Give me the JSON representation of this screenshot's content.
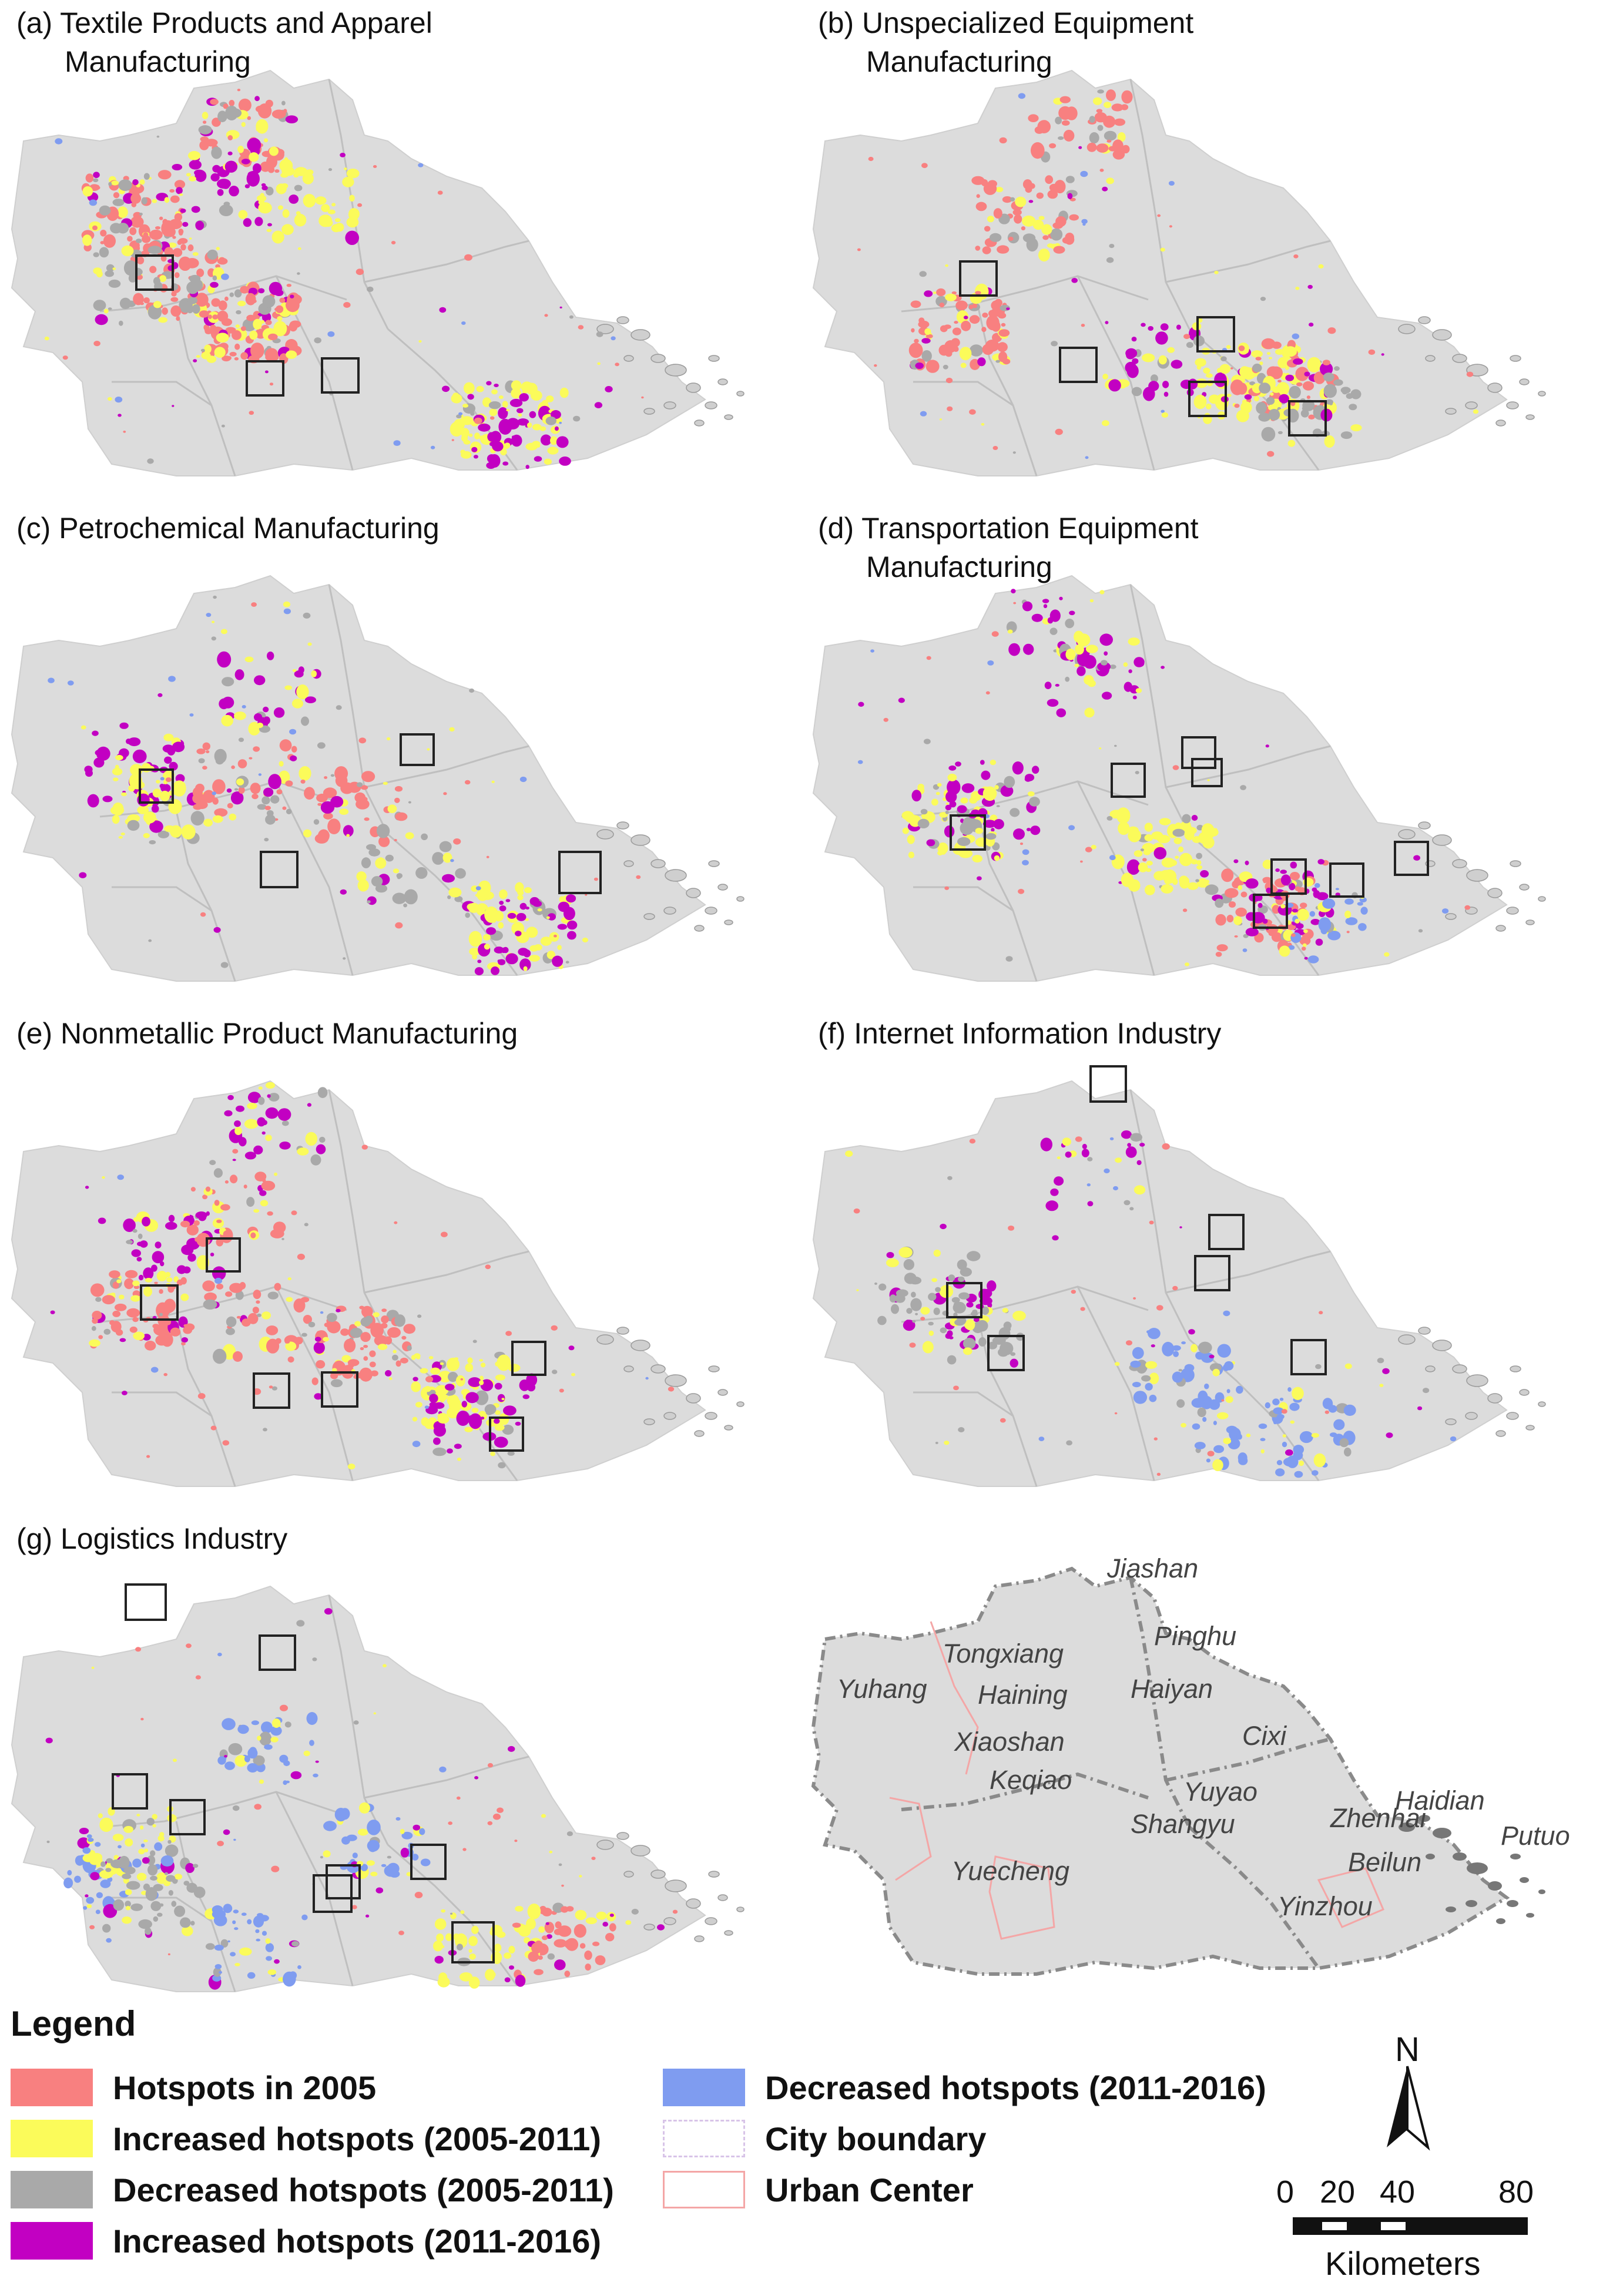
{
  "panels": [
    {
      "id": "a",
      "title_l1": "(a) Textile Products and Apparel",
      "title_l2": "Manufacturing"
    },
    {
      "id": "b",
      "title_l1": "(b) Unspecialized Equipment",
      "title_l2": "Manufacturing"
    },
    {
      "id": "c",
      "title_l1": "(c) Petrochemical Manufacturing",
      "title_l2": ""
    },
    {
      "id": "d",
      "title_l1": "(d) Transportation Equipment",
      "title_l2": "Manufacturing"
    },
    {
      "id": "e",
      "title_l1": "(e) Nonmetallic  Product  Manufacturing",
      "title_l2": ""
    },
    {
      "id": "f",
      "title_l1": "(f) Internet Information Industry",
      "title_l2": ""
    },
    {
      "id": "g",
      "title_l1": "(g) Logistics Industry",
      "title_l2": ""
    }
  ],
  "reference_map": {
    "labels": [
      "Jiashan",
      "Tongxiang",
      "Pinghu",
      "Yuhang",
      "Haining",
      "Haiyan",
      "Xiaoshan",
      "Keqiao",
      "Cixi",
      "Yuyao",
      "Shangyu",
      "Yuecheng",
      "Zhenhai",
      "Haidian",
      "Beilun",
      "Putuo",
      "Yinzhou"
    ]
  },
  "legend": {
    "title": "Legend",
    "items": [
      {
        "label": "Hotspots in 2005",
        "color": "#f88080"
      },
      {
        "label": "Increased hotspots (2005-2011)",
        "color": "#fbfb5a"
      },
      {
        "label": "Decreased hotspots (2005-2011)",
        "color": "#a9a9a9"
      },
      {
        "label": "Increased hotspots (2011-2016)",
        "color": "#c200c2"
      },
      {
        "label": "Decreased hotspots (2011-2016)",
        "color": "#7f9cf0"
      },
      {
        "label": "City boundary",
        "color": "#d8c4e8"
      },
      {
        "label": "Urban Center",
        "color": "#f4a6a6"
      }
    ]
  },
  "north_arrow": {
    "letter": "N"
  },
  "scale_bar": {
    "ticks": [
      "0",
      "20",
      "40",
      "80"
    ],
    "unit": "Kilometers"
  },
  "colors": {
    "region_fill": "#dcdcdc",
    "internal_boundary": "#bfbfbf",
    "study_box": "#222222",
    "ref_boundary": "#8a8a8a",
    "urban_center": "#f4a6a6"
  }
}
